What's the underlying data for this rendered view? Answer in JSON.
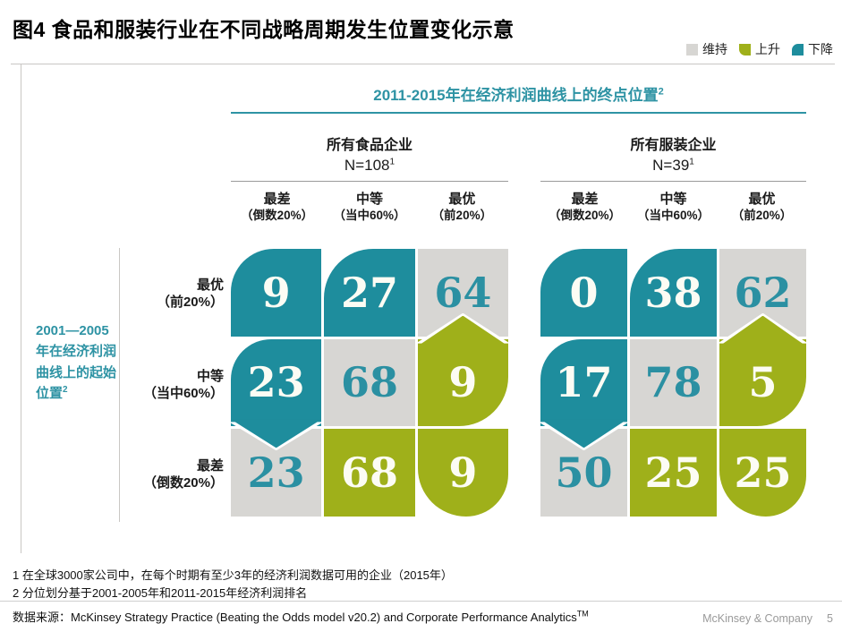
{
  "title": "图4 食品和服装行业在不同战略周期发生位置变化示意",
  "legend": {
    "items": [
      {
        "label": "维持",
        "state": "keep",
        "color": "#d7d6d3"
      },
      {
        "label": "上升",
        "state": "up",
        "color": "#9fb01a"
      },
      {
        "label": "下降",
        "state": "down",
        "color": "#1e8d9d"
      }
    ]
  },
  "end_axis": {
    "text": "2011-2015年在经济利润曲线上的终点位置",
    "sup": "2"
  },
  "start_axis": {
    "text": "2001—2005年在经济利润曲线上的起始位置",
    "sup": "2"
  },
  "col_headers": [
    {
      "main": "最差",
      "sub": "（倒数20%）"
    },
    {
      "main": "中等",
      "sub": "（当中60%）"
    },
    {
      "main": "最优",
      "sub": "（前20%）"
    }
  ],
  "row_headers": [
    {
      "main": "最优",
      "sub": "（前20%）"
    },
    {
      "main": "中等",
      "sub": "（当中60%）"
    },
    {
      "main": "最差",
      "sub": "（倒数20%）"
    }
  ],
  "chart_data": {
    "type": "heatmap",
    "title": "图4 食品和服装行业在不同战略周期发生位置变化示意",
    "x_label": "2011-2015年在经济利润曲线上的终点位置",
    "y_label": "2001—2005年在经济利润曲线上的起始位置",
    "columns": [
      "最差（倒数20%）",
      "中等（当中60%）",
      "最优（前20%）"
    ],
    "rows": [
      "最优（前20%）",
      "中等（当中60%）",
      "最差（倒数20%）"
    ],
    "legend": {
      "维持": "#d7d6d3",
      "上升": "#9fb01a",
      "下降": "#1e8d9d"
    },
    "matrices": [
      {
        "name": "所有食品企业",
        "n_label": "N=108",
        "n_sup": "1",
        "values": [
          [
            9,
            27,
            64
          ],
          [
            23,
            68,
            9
          ],
          [
            23,
            68,
            9
          ]
        ],
        "states": [
          [
            "down",
            "down",
            "keep"
          ],
          [
            "down",
            "keep",
            "up"
          ],
          [
            "keep",
            "up",
            "up"
          ]
        ]
      },
      {
        "name": "所有服装企业",
        "n_label": "N=39",
        "n_sup": "1",
        "values": [
          [
            0,
            38,
            62
          ],
          [
            17,
            78,
            5
          ],
          [
            50,
            25,
            25
          ]
        ],
        "states": [
          [
            "down",
            "down",
            "keep"
          ],
          [
            "down",
            "keep",
            "up"
          ],
          [
            "keep",
            "up",
            "up"
          ]
        ]
      }
    ]
  },
  "footnotes": [
    "1 在全球3000家公司中，在每个时期有至少3年的经济利润数据可用的企业（2015年）",
    "2 分位划分基于2001-2005年和2011-2015年经济利润排名"
  ],
  "source": {
    "label": "数据来源：",
    "text": "McKinsey Strategy Practice (Beating the Odds model v20.2) and Corporate Performance Analytics",
    "sup": "TM"
  },
  "footer": {
    "company": "McKinsey & Company",
    "page": "5"
  }
}
